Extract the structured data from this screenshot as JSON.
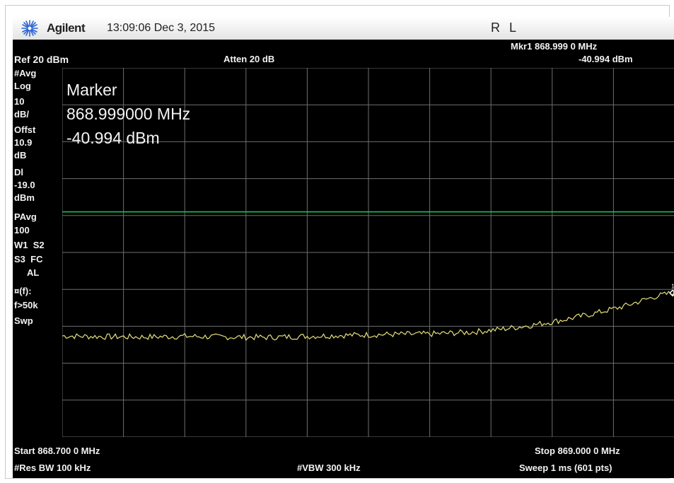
{
  "header": {
    "brand": "Agilent",
    "datetime": "13:09:06 Dec 3, 2015",
    "status": "R L",
    "logo_icon": "agilent-spark-icon"
  },
  "top": {
    "marker_readout_freq": "Mkr1 868.999 0 MHz",
    "marker_readout_amp": "-40.994 dBm",
    "ref_level": "Ref 20 dBm",
    "attenuation": "Atten 20 dB"
  },
  "marker_box": {
    "title": "Marker",
    "freq": "868.999000 MHz",
    "amp": "-40.994 dBm"
  },
  "left_panel": {
    "avg": "#Avg",
    "log": "Log",
    "scale_value": "10",
    "scale_unit": "dB/",
    "offset_label": "Offst",
    "offset_value": "10.9",
    "offset_unit": "dB",
    "dl_label": "Dl",
    "dl_value": "-19.0",
    "dl_unit": "dBm",
    "pavg_label": "PAvg",
    "pavg_value": "100",
    "w1s2": "W1  S2",
    "s3fc": "S3  FC",
    "al": "AL",
    "trig_label": "¤(f):",
    "trig_value": "f>50k",
    "swp": "Swp"
  },
  "bottom": {
    "start": "Start 868.700 0 MHz",
    "stop": "Stop 869.000 0 MHz",
    "res_bw": "#Res BW 100 kHz",
    "vbw": "#VBW 300 kHz",
    "sweep": "Sweep 1 ms (601 pts)"
  },
  "chart_data": {
    "type": "line",
    "x_start_mhz": 868.7,
    "x_stop_mhz": 869.0,
    "ref_level_dbm": 20,
    "db_per_div": 10,
    "divisions": 10,
    "display_line_dbm": -19.0,
    "display_line_color": "#22c04a",
    "trace_color": "#e8e07a",
    "grid": true,
    "marker": {
      "label": "1",
      "x_mhz": 868.999,
      "y_dbm": -40.994
    },
    "trace": {
      "x_mhz": [
        868.7,
        868.72,
        868.74,
        868.76,
        868.78,
        868.8,
        868.82,
        868.84,
        868.86,
        868.88,
        868.9,
        868.915,
        868.93,
        868.945,
        868.96,
        868.975,
        868.99,
        869.0
      ],
      "y_dbm": [
        -52.6,
        -52.8,
        -52.9,
        -52.7,
        -52.9,
        -53.0,
        -52.7,
        -52.4,
        -52.2,
        -52.1,
        -51.6,
        -50.8,
        -49.7,
        -48.3,
        -46.6,
        -44.6,
        -42.0,
        -40.8
      ]
    }
  }
}
